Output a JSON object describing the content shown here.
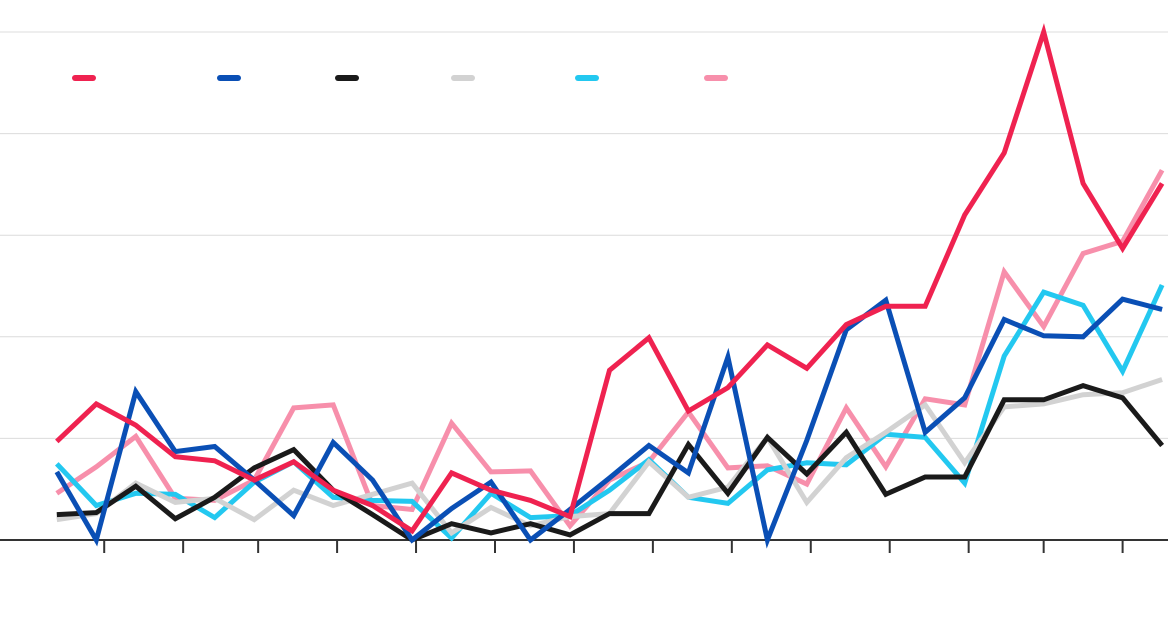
{
  "chart_data": {
    "type": "line",
    "x": [
      0,
      1,
      2,
      3,
      4,
      5,
      6,
      7,
      8,
      9,
      10,
      11,
      12,
      13,
      14,
      15,
      16,
      17,
      18,
      19,
      20,
      21,
      22,
      23,
      24,
      25,
      26,
      27,
      28
    ],
    "xlim": [
      -1.44,
      28.15
    ],
    "xticks": [
      1.2,
      3.2,
      5.1,
      7.1,
      9.1,
      11.1,
      13.1,
      15.1,
      17.1,
      19.1,
      21.1,
      23.1,
      25.0,
      27.0
    ],
    "ylim": [
      0,
      5
    ],
    "yticks": [
      0,
      1,
      2,
      3,
      4,
      5
    ],
    "grid": true,
    "legend": "top-left",
    "series": [
      {
        "color": "#ef2250",
        "values": [
          0.97,
          1.34,
          1.13,
          0.82,
          0.78,
          0.59,
          0.77,
          0.49,
          0.34,
          0.09,
          0.66,
          0.49,
          0.39,
          0.23,
          1.67,
          1.99,
          1.27,
          1.5,
          1.92,
          1.69,
          2.12,
          2.3,
          2.3,
          3.2,
          3.81,
          5.0,
          3.51,
          2.87,
          3.51
        ]
      },
      {
        "color": "#0a4fb5",
        "values": [
          0.67,
          0,
          1.46,
          0.87,
          0.92,
          0.59,
          0.24,
          0.96,
          0.59,
          0,
          0.31,
          0.57,
          0,
          0.3,
          0.61,
          0.93,
          0.66,
          1.8,
          0,
          0.98,
          2.07,
          2.36,
          1.06,
          1.4,
          2.17,
          2.01,
          2.0,
          2.37,
          2.27
        ]
      },
      {
        "color": "#1a1a1a",
        "values": [
          0.25,
          0.27,
          0.53,
          0.21,
          0.42,
          0.71,
          0.89,
          0.49,
          0.25,
          0,
          0.16,
          0.07,
          0.16,
          0.05,
          0.26,
          0.26,
          0.94,
          0.46,
          1.01,
          0.65,
          1.06,
          0.45,
          0.62,
          0.62,
          1.38,
          1.38,
          1.52,
          1.4,
          0.93
        ]
      },
      {
        "color": "#d2d2d2",
        "values": [
          0.2,
          0.26,
          0.56,
          0.37,
          0.41,
          0.2,
          0.49,
          0.34,
          0.45,
          0.56,
          0.07,
          0.32,
          0.14,
          0.23,
          0.26,
          0.77,
          0.42,
          0.52,
          1.01,
          0.37,
          0.81,
          1.06,
          1.33,
          0.76,
          1.31,
          1.34,
          1.43,
          1.45,
          1.58
        ]
      },
      {
        "color": "#23c8f0",
        "values": [
          0.75,
          0.34,
          0.46,
          0.45,
          0.22,
          0.57,
          0.77,
          0.42,
          0.39,
          0.38,
          0.02,
          0.46,
          0.22,
          0.24,
          0.49,
          0.79,
          0.42,
          0.36,
          0.69,
          0.76,
          0.74,
          1.04,
          1.01,
          0.56,
          1.81,
          2.44,
          2.31,
          1.66,
          2.51
        ]
      },
      {
        "color": "#f78fab",
        "values": [
          0.46,
          0.72,
          1.02,
          0.41,
          0.39,
          0.59,
          1.3,
          1.33,
          0.34,
          0.3,
          1.15,
          0.67,
          0.68,
          0.14,
          0.59,
          0.77,
          1.26,
          0.71,
          0.73,
          0.55,
          1.3,
          0.72,
          1.39,
          1.33,
          2.64,
          2.1,
          2.82,
          2.94,
          3.64
        ]
      }
    ]
  }
}
